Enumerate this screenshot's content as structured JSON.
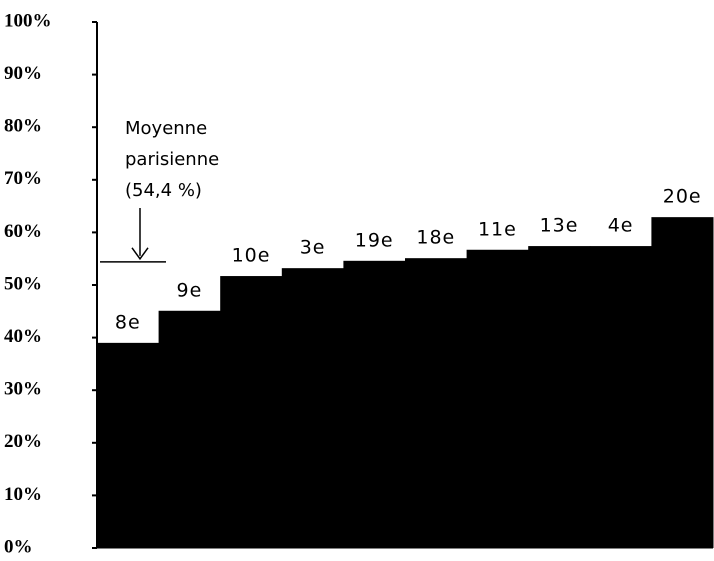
{
  "chart_data": {
    "type": "bar",
    "categories": [
      "8e",
      "9e",
      "10e",
      "3e",
      "19e",
      "18e",
      "11e",
      "13e",
      "4e",
      "20e"
    ],
    "values": [
      39.0,
      45.1,
      51.7,
      53.2,
      54.6,
      55.1,
      56.7,
      57.4,
      57.4,
      62.9
    ],
    "color": "#000000",
    "ylim": [
      0,
      100
    ],
    "yticks": [
      {
        "value": 0,
        "label": "0%"
      },
      {
        "value": 10,
        "label": "10%"
      },
      {
        "value": 20,
        "label": "20%"
      },
      {
        "value": 30,
        "label": "30%"
      },
      {
        "value": 40,
        "label": "40%"
      },
      {
        "value": 50,
        "label": "50%"
      },
      {
        "value": 60,
        "label": "60%"
      },
      {
        "value": 70,
        "label": "70%"
      },
      {
        "value": 80,
        "label": "80%"
      },
      {
        "value": 90,
        "label": "90%"
      },
      {
        "value": 100,
        "label": "100%"
      }
    ],
    "mean_line": 54.4,
    "annotation": [
      "Moyenne",
      "parisienne",
      "(54,4 %)"
    ]
  }
}
